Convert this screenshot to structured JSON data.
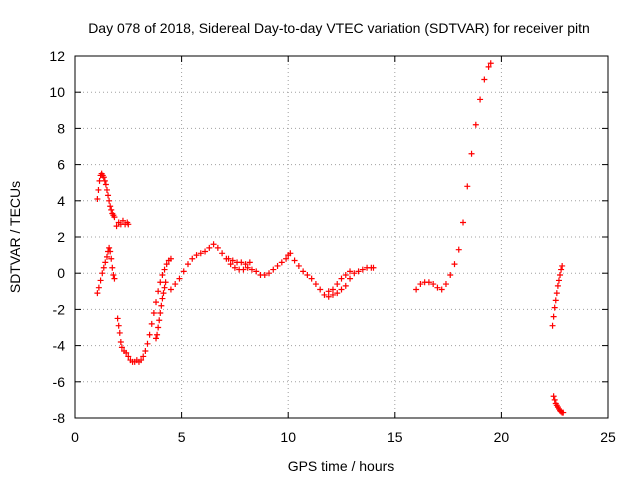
{
  "chart_data": {
    "type": "scatter",
    "title": "Day 078 of 2018, Sidereal Day-to-day VTEC variation (SDTVAR) for receiver pitn",
    "xlabel": "GPS time / hours",
    "ylabel": "SDTVAR / TECUs",
    "xlim": [
      0,
      25
    ],
    "ylim": [
      -8,
      12
    ],
    "x_ticks": [
      0,
      5,
      10,
      15,
      20,
      25
    ],
    "y_ticks": [
      -8,
      -6,
      -4,
      -2,
      0,
      2,
      4,
      6,
      8,
      10,
      12
    ],
    "grid": true,
    "marker": "plus",
    "color": "#ff0000",
    "series": [
      {
        "x": [
          1.05,
          1.1,
          1.15,
          1.2,
          1.25,
          1.3,
          1.35,
          1.4,
          1.45,
          1.5,
          1.55,
          1.6,
          1.65,
          1.7,
          1.75,
          1.8,
          1.85
        ],
        "y": [
          4.1,
          4.6,
          5.1,
          5.4,
          5.5,
          5.4,
          5.3,
          5.1,
          4.9,
          4.6,
          4.3,
          4.0,
          3.7,
          3.5,
          3.3,
          3.2,
          3.1
        ]
      },
      {
        "x": [
          1.95,
          2.05,
          2.15,
          2.25,
          2.35,
          2.45,
          2.5
        ],
        "y": [
          2.6,
          2.8,
          2.7,
          2.9,
          2.7,
          2.8,
          2.7
        ]
      },
      {
        "x": [
          1.05,
          1.12,
          1.2,
          1.28,
          1.35,
          1.42,
          1.5,
          1.55,
          1.6,
          1.65,
          1.7,
          1.75,
          1.8,
          1.85
        ],
        "y": [
          -1.1,
          -0.8,
          -0.4,
          0.0,
          0.3,
          0.6,
          0.9,
          1.2,
          1.4,
          1.2,
          0.8,
          0.3,
          -0.1,
          -0.3
        ]
      },
      {
        "x": [
          2.0,
          2.05,
          2.1,
          2.15,
          2.2,
          2.3,
          2.4,
          2.5,
          2.6,
          2.7,
          2.8,
          2.9,
          3.0,
          3.1,
          3.2,
          3.3,
          3.4,
          3.5,
          3.6,
          3.7,
          3.8,
          3.9,
          4.0,
          4.1,
          4.2,
          4.3,
          4.4,
          4.5
        ],
        "y": [
          -2.5,
          -2.9,
          -3.3,
          -3.8,
          -4.1,
          -4.3,
          -4.4,
          -4.6,
          -4.8,
          -4.9,
          -4.9,
          -4.8,
          -4.9,
          -4.8,
          -4.6,
          -4.3,
          -3.9,
          -3.4,
          -2.8,
          -2.2,
          -1.6,
          -1.0,
          -0.5,
          -0.1,
          0.2,
          0.5,
          0.7,
          0.8
        ]
      },
      {
        "x": [
          3.8,
          3.85,
          3.9,
          3.95,
          4.0,
          4.05,
          4.1,
          4.15,
          4.2,
          4.25
        ],
        "y": [
          -3.6,
          -3.4,
          -3.0,
          -2.6,
          -2.2,
          -1.8,
          -1.4,
          -1.1,
          -0.8,
          -0.5
        ]
      },
      {
        "x": [
          4.5,
          4.7,
          4.9,
          5.1,
          5.3,
          5.5,
          5.7,
          5.9,
          6.1,
          6.3,
          6.5,
          6.7,
          6.9,
          7.1,
          7.3,
          7.5,
          7.7,
          7.9,
          8.1,
          8.3,
          8.5,
          8.7,
          8.9,
          9.1,
          9.3,
          9.5,
          9.7,
          9.9,
          10.0,
          10.1
        ],
        "y": [
          -0.9,
          -0.6,
          -0.3,
          0.1,
          0.5,
          0.8,
          1.0,
          1.1,
          1.2,
          1.4,
          1.6,
          1.4,
          1.1,
          0.8,
          0.5,
          0.3,
          0.2,
          0.2,
          0.3,
          0.2,
          0.1,
          -0.1,
          -0.1,
          0.0,
          0.2,
          0.4,
          0.6,
          0.8,
          1.0,
          1.1
        ]
      },
      {
        "x": [
          7.2,
          7.4,
          7.6,
          7.8,
          8.0,
          8.2
        ],
        "y": [
          0.8,
          0.7,
          0.6,
          0.6,
          0.5,
          0.6
        ]
      },
      {
        "x": [
          10.3,
          10.5,
          10.7,
          10.9,
          11.1,
          11.3,
          11.5,
          11.7,
          11.9,
          12.1,
          12.3,
          12.5,
          12.7,
          12.9,
          13.1,
          13.3,
          13.5,
          13.7,
          13.9,
          14.0
        ],
        "y": [
          0.7,
          0.4,
          0.1,
          -0.1,
          -0.3,
          -0.6,
          -0.9,
          -1.2,
          -1.3,
          -1.2,
          -1.1,
          -0.9,
          -0.7,
          -0.3,
          0.0,
          0.1,
          0.2,
          0.3,
          0.3,
          0.3
        ]
      },
      {
        "x": [
          11.9,
          12.1,
          12.3,
          12.5,
          12.7,
          12.9
        ],
        "y": [
          -1.0,
          -0.9,
          -0.6,
          -0.3,
          -0.1,
          0.1
        ]
      },
      {
        "x": [
          16.0,
          16.2,
          16.4,
          16.6,
          16.8,
          17.0,
          17.2,
          17.4,
          17.6,
          17.8,
          18.0,
          18.2,
          18.4,
          18.6,
          18.8,
          19.0,
          19.2,
          19.4,
          19.5
        ],
        "y": [
          -0.9,
          -0.6,
          -0.5,
          -0.5,
          -0.6,
          -0.8,
          -0.9,
          -0.6,
          -0.1,
          0.5,
          1.3,
          2.8,
          4.8,
          6.6,
          8.2,
          9.6,
          10.7,
          11.4,
          11.6
        ]
      },
      {
        "x": [
          22.4,
          22.45,
          22.5,
          22.55,
          22.6,
          22.65,
          22.7,
          22.75,
          22.8,
          22.85
        ],
        "y": [
          -2.9,
          -2.4,
          -1.9,
          -1.5,
          -1.1,
          -0.7,
          -0.4,
          -0.1,
          0.2,
          0.4
        ]
      },
      {
        "x": [
          22.45,
          22.5,
          22.55,
          22.6,
          22.65,
          22.7,
          22.75,
          22.8,
          22.85,
          22.9
        ],
        "y": [
          -6.8,
          -7.0,
          -7.2,
          -7.3,
          -7.4,
          -7.5,
          -7.6,
          -7.65,
          -7.7,
          -7.7
        ]
      }
    ]
  }
}
